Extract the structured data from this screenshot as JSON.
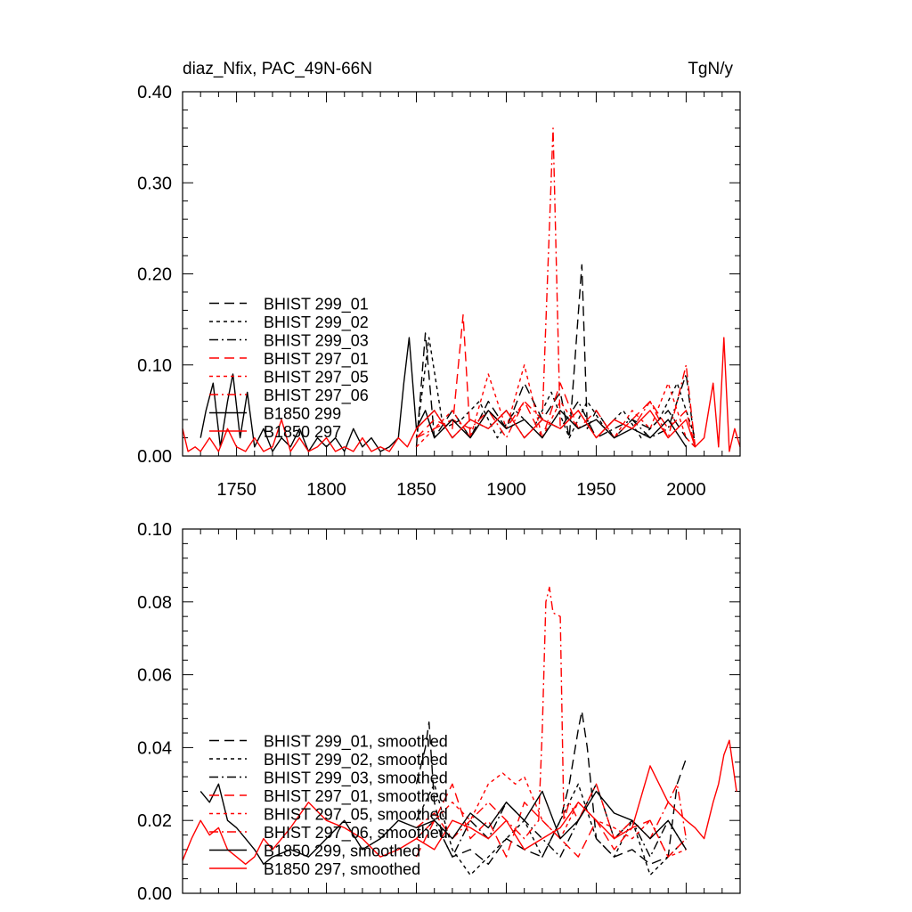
{
  "colors": {
    "black": "#000000",
    "red": "#ff0000",
    "background": "#ffffff"
  },
  "chart_data": [
    {
      "type": "line",
      "title_left": "diaz_Nfix, PAC_49N-66N",
      "title_right": "TgN/y",
      "xlim": [
        1720,
        2030
      ],
      "ylim": [
        0,
        0.4
      ],
      "xticks": [
        1750,
        1800,
        1850,
        1900,
        1950,
        2000
      ],
      "yticks": [
        0.0,
        0.1,
        0.2,
        0.3,
        0.4
      ],
      "ytick_labels": [
        "0.00",
        "0.10",
        "0.20",
        "0.30",
        "0.40"
      ],
      "show_xtick_labels": true,
      "legend_position": "lower-left",
      "series": [
        {
          "name": "BHIST 299_01",
          "color": "#000000",
          "dash": "long-dash",
          "x": [
            1850,
            1855,
            1860,
            1870,
            1880,
            1890,
            1900,
            1910,
            1920,
            1930,
            1935,
            1942,
            1945,
            1950,
            1960,
            1970,
            1980,
            1990,
            2000,
            2005
          ],
          "y": [
            0.01,
            0.135,
            0.02,
            0.05,
            0.02,
            0.06,
            0.03,
            0.08,
            0.04,
            0.07,
            0.02,
            0.21,
            0.03,
            0.05,
            0.02,
            0.04,
            0.03,
            0.05,
            0.02,
            0.01
          ]
        },
        {
          "name": "BHIST 299_02",
          "color": "#000000",
          "dash": "short-dash",
          "x": [
            1850,
            1857,
            1865,
            1875,
            1885,
            1895,
            1905,
            1915,
            1925,
            1935,
            1945,
            1955,
            1965,
            1975,
            1985,
            1995,
            2005
          ],
          "y": [
            0.02,
            0.13,
            0.03,
            0.04,
            0.06,
            0.02,
            0.05,
            0.03,
            0.07,
            0.02,
            0.06,
            0.03,
            0.05,
            0.02,
            0.04,
            0.08,
            0.02
          ]
        },
        {
          "name": "BHIST 299_03",
          "color": "#000000",
          "dash": "dash-dot",
          "x": [
            1850,
            1860,
            1870,
            1880,
            1890,
            1900,
            1910,
            1920,
            1930,
            1940,
            1950,
            1960,
            1970,
            1980,
            1990,
            2000,
            2005
          ],
          "y": [
            0.03,
            0.05,
            0.02,
            0.04,
            0.03,
            0.05,
            0.02,
            0.04,
            0.03,
            0.06,
            0.02,
            0.03,
            0.04,
            0.02,
            0.03,
            0.09,
            0.01
          ]
        },
        {
          "name": "BHIST 297_01",
          "color": "#ff0000",
          "dash": "long-dash",
          "x": [
            1850,
            1860,
            1870,
            1876,
            1880,
            1890,
            1900,
            1910,
            1920,
            1930,
            1940,
            1950,
            1960,
            1970,
            1980,
            1990,
            2000,
            2005
          ],
          "y": [
            0.02,
            0.04,
            0.03,
            0.155,
            0.02,
            0.05,
            0.03,
            0.06,
            0.02,
            0.08,
            0.03,
            0.05,
            0.02,
            0.04,
            0.06,
            0.03,
            0.05,
            0.01
          ]
        },
        {
          "name": "BHIST 297_05",
          "color": "#ff0000",
          "dash": "short-dash",
          "x": [
            1850,
            1860,
            1870,
            1880,
            1890,
            1900,
            1910,
            1920,
            1930,
            1940,
            1950,
            1960,
            1970,
            1980,
            1990,
            2000,
            2005
          ],
          "y": [
            0.01,
            0.03,
            0.05,
            0.02,
            0.09,
            0.03,
            0.1,
            0.02,
            0.06,
            0.03,
            0.04,
            0.02,
            0.05,
            0.03,
            0.08,
            0.02,
            0.01
          ]
        },
        {
          "name": "BHIST 297_06",
          "color": "#ff0000",
          "dash": "dash-dot",
          "x": [
            1850,
            1860,
            1870,
            1880,
            1890,
            1900,
            1910,
            1920,
            1926,
            1930,
            1940,
            1950,
            1960,
            1970,
            1980,
            1990,
            2000,
            2005
          ],
          "y": [
            0.02,
            0.03,
            0.04,
            0.03,
            0.05,
            0.02,
            0.06,
            0.04,
            0.36,
            0.03,
            0.05,
            0.02,
            0.04,
            0.03,
            0.06,
            0.02,
            0.1,
            0.01
          ]
        },
        {
          "name": "B1850 299",
          "color": "#000000",
          "dash": "solid",
          "x": [
            1730,
            1733,
            1737,
            1741,
            1745,
            1748,
            1752,
            1756,
            1760,
            1765,
            1770,
            1775,
            1780,
            1785,
            1790,
            1795,
            1800,
            1805,
            1810,
            1815,
            1820,
            1825,
            1830,
            1835,
            1840,
            1843,
            1846,
            1850,
            1855,
            1860,
            1870,
            1880,
            1890,
            1900,
            1910,
            1920,
            1930,
            1940,
            1950,
            1960,
            1970,
            1980,
            1990,
            2000
          ],
          "y": [
            0.02,
            0.05,
            0.08,
            0.01,
            0.06,
            0.09,
            0.02,
            0.07,
            0.01,
            0.03,
            0.005,
            0.02,
            0.01,
            0.03,
            0.005,
            0.02,
            0.01,
            0.02,
            0.005,
            0.03,
            0.01,
            0.02,
            0.005,
            0.01,
            0.02,
            0.08,
            0.13,
            0.03,
            0.05,
            0.02,
            0.04,
            0.02,
            0.05,
            0.03,
            0.04,
            0.02,
            0.05,
            0.03,
            0.04,
            0.02,
            0.03,
            0.02,
            0.04,
            0.01
          ]
        },
        {
          "name": "B1850 297",
          "color": "#ff0000",
          "dash": "solid",
          "x": [
            1720,
            1723,
            1727,
            1730,
            1735,
            1740,
            1745,
            1750,
            1755,
            1760,
            1765,
            1770,
            1775,
            1780,
            1785,
            1790,
            1795,
            1800,
            1805,
            1810,
            1815,
            1820,
            1825,
            1830,
            1835,
            1840,
            1845,
            1850,
            1860,
            1870,
            1880,
            1890,
            1900,
            1910,
            1920,
            1930,
            1940,
            1950,
            1960,
            1970,
            1980,
            1990,
            2000,
            2005,
            2010,
            2015,
            2018,
            2021,
            2024,
            2027,
            2030
          ],
          "y": [
            0.03,
            0.005,
            0.01,
            0.005,
            0.02,
            0.005,
            0.03,
            0.01,
            0.005,
            0.02,
            0.005,
            0.01,
            0.04,
            0.005,
            0.02,
            0.005,
            0.01,
            0.02,
            0.005,
            0.01,
            0.005,
            0.02,
            0.005,
            0.01,
            0.005,
            0.02,
            0.01,
            0.03,
            0.05,
            0.02,
            0.04,
            0.03,
            0.05,
            0.02,
            0.04,
            0.03,
            0.05,
            0.02,
            0.04,
            0.03,
            0.05,
            0.02,
            0.04,
            0.01,
            0.02,
            0.08,
            0.01,
            0.13,
            0.005,
            0.03,
            0.01
          ]
        }
      ]
    },
    {
      "type": "line",
      "xlim": [
        1720,
        2030
      ],
      "ylim": [
        0,
        0.1
      ],
      "xticks": [
        1750,
        1800,
        1850,
        1900,
        1950,
        2000
      ],
      "yticks": [
        0.0,
        0.02,
        0.04,
        0.06,
        0.08,
        0.1
      ],
      "ytick_labels": [
        "0.00",
        "0.02",
        "0.04",
        "0.06",
        "0.08",
        "0.10"
      ],
      "show_xtick_labels": false,
      "legend_position": "lower-left",
      "series": [
        {
          "name": "BHIST 299_01, smoothed",
          "color": "#000000",
          "dash": "long-dash",
          "x": [
            1850,
            1855,
            1857,
            1860,
            1865,
            1870,
            1880,
            1890,
            1900,
            1910,
            1920,
            1930,
            1935,
            1940,
            1942,
            1945,
            1950,
            1960,
            1970,
            1980,
            1990,
            1995,
            2000
          ],
          "y": [
            0.03,
            0.04,
            0.047,
            0.025,
            0.015,
            0.01,
            0.012,
            0.008,
            0.015,
            0.012,
            0.01,
            0.02,
            0.03,
            0.045,
            0.05,
            0.04,
            0.015,
            0.01,
            0.012,
            0.008,
            0.01,
            0.03,
            0.037
          ]
        },
        {
          "name": "BHIST 299_02, smoothed",
          "color": "#000000",
          "dash": "short-dash",
          "x": [
            1850,
            1860,
            1870,
            1880,
            1890,
            1900,
            1910,
            1920,
            1930,
            1940,
            1950,
            1960,
            1970,
            1980,
            1990,
            2000
          ],
          "y": [
            0.02,
            0.03,
            0.012,
            0.005,
            0.01,
            0.015,
            0.02,
            0.01,
            0.02,
            0.03,
            0.015,
            0.01,
            0.02,
            0.005,
            0.01,
            0.015
          ]
        },
        {
          "name": "BHIST 299_03, smoothed",
          "color": "#000000",
          "dash": "dash-dot",
          "x": [
            1850,
            1860,
            1870,
            1880,
            1890,
            1900,
            1910,
            1920,
            1930,
            1940,
            1950,
            1960,
            1970,
            1980,
            1990,
            2000
          ],
          "y": [
            0.015,
            0.02,
            0.01,
            0.02,
            0.015,
            0.025,
            0.02,
            0.015,
            0.01,
            0.02,
            0.03,
            0.015,
            0.02,
            0.01,
            0.02,
            0.012
          ]
        },
        {
          "name": "BHIST 297_01, smoothed",
          "color": "#ff0000",
          "dash": "long-dash",
          "x": [
            1850,
            1860,
            1870,
            1880,
            1890,
            1900,
            1910,
            1920,
            1930,
            1940,
            1950,
            1960,
            1970,
            1980,
            1990,
            2000
          ],
          "y": [
            0.01,
            0.02,
            0.03,
            0.015,
            0.02,
            0.01,
            0.025,
            0.02,
            0.015,
            0.01,
            0.02,
            0.012,
            0.018,
            0.02,
            0.01,
            0.015
          ]
        },
        {
          "name": "BHIST 297_05, smoothed",
          "color": "#ff0000",
          "dash": "short-dash",
          "x": [
            1850,
            1860,
            1870,
            1880,
            1890,
            1898,
            1905,
            1910,
            1920,
            1930,
            1940,
            1950,
            1960,
            1970,
            1980,
            1990,
            2000
          ],
          "y": [
            0.015,
            0.02,
            0.025,
            0.02,
            0.03,
            0.033,
            0.03,
            0.032,
            0.02,
            0.015,
            0.025,
            0.02,
            0.018,
            0.015,
            0.02,
            0.01,
            0.012
          ]
        },
        {
          "name": "BHIST 297_06, smoothed",
          "color": "#ff0000",
          "dash": "dash-dot",
          "x": [
            1850,
            1860,
            1870,
            1880,
            1890,
            1900,
            1910,
            1918,
            1920,
            1922,
            1924,
            1926,
            1930,
            1932,
            1935,
            1940,
            1950,
            1960,
            1970,
            1980,
            1990,
            1995,
            2000
          ],
          "y": [
            0.018,
            0.022,
            0.015,
            0.02,
            0.025,
            0.02,
            0.015,
            0.02,
            0.045,
            0.08,
            0.084,
            0.077,
            0.076,
            0.02,
            0.025,
            0.02,
            0.03,
            0.015,
            0.02,
            0.015,
            0.025,
            0.03,
            0.015
          ]
        },
        {
          "name": "B1850 299, smoothed",
          "color": "#000000",
          "dash": "solid",
          "x": [
            1730,
            1735,
            1740,
            1745,
            1750,
            1755,
            1760,
            1765,
            1770,
            1780,
            1790,
            1800,
            1810,
            1820,
            1830,
            1840,
            1850,
            1860,
            1870,
            1880,
            1890,
            1900,
            1910,
            1920,
            1930,
            1940,
            1950,
            1960,
            1970,
            1980,
            1990,
            2000
          ],
          "y": [
            0.028,
            0.025,
            0.03,
            0.02,
            0.018,
            0.015,
            0.012,
            0.008,
            0.01,
            0.012,
            0.01,
            0.015,
            0.02,
            0.012,
            0.015,
            0.02,
            0.018,
            0.02,
            0.015,
            0.022,
            0.018,
            0.025,
            0.02,
            0.028,
            0.015,
            0.02,
            0.028,
            0.022,
            0.02,
            0.015,
            0.02,
            0.012
          ]
        },
        {
          "name": "B1850 297, smoothed",
          "color": "#ff0000",
          "dash": "solid",
          "x": [
            1720,
            1725,
            1730,
            1735,
            1740,
            1745,
            1750,
            1755,
            1760,
            1765,
            1770,
            1780,
            1790,
            1800,
            1810,
            1820,
            1830,
            1840,
            1850,
            1860,
            1870,
            1880,
            1890,
            1900,
            1910,
            1920,
            1930,
            1940,
            1950,
            1960,
            1970,
            1980,
            1990,
            2000,
            2005,
            2010,
            2015,
            2018,
            2021,
            2024,
            2028
          ],
          "y": [
            0.009,
            0.015,
            0.02,
            0.016,
            0.018,
            0.012,
            0.01,
            0.008,
            0.01,
            0.015,
            0.012,
            0.018,
            0.025,
            0.02,
            0.018,
            0.015,
            0.01,
            0.012,
            0.015,
            0.012,
            0.02,
            0.018,
            0.015,
            0.02,
            0.012,
            0.015,
            0.018,
            0.025,
            0.02,
            0.015,
            0.018,
            0.035,
            0.025,
            0.02,
            0.018,
            0.015,
            0.025,
            0.03,
            0.038,
            0.042,
            0.028
          ]
        }
      ]
    }
  ]
}
